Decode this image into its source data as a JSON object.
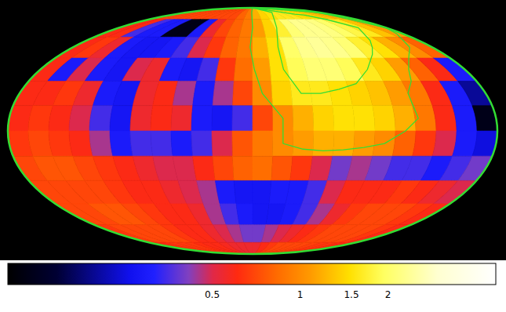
{
  "chart_data": {
    "type": "heatmap",
    "log": true,
    "cells": [
      [
        0.7,
        0.7,
        0.7,
        0.7,
        0.7,
        0.7,
        0.7,
        0.7,
        0.7,
        0.7,
        0.8,
        0.9,
        1.2,
        1.4,
        1.5,
        1.6,
        1.6,
        1.6,
        1.5,
        1.5,
        1.4,
        1.3,
        1.2,
        1.1
      ],
      [
        0.6,
        0.6,
        0.35,
        0.3,
        0.3,
        0.12,
        0.12,
        0.3,
        0.55,
        0.7,
        0.8,
        0.9,
        1.1,
        1.4,
        1.7,
        2.1,
        2.3,
        2.3,
        2.2,
        2.0,
        1.8,
        1.6,
        1.3,
        1.1
      ],
      [
        0.6,
        0.65,
        0.55,
        0.3,
        0.28,
        0.28,
        0.3,
        0.35,
        0.5,
        0.65,
        0.8,
        0.9,
        1.2,
        1.5,
        2.0,
        2.3,
        2.4,
        2.3,
        2.1,
        1.7,
        1.5,
        1.2,
        1.0,
        0.8
      ],
      [
        0.6,
        0.3,
        0.5,
        0.3,
        0.28,
        0.5,
        0.55,
        0.3,
        0.28,
        0.35,
        0.65,
        0.85,
        1.1,
        1.5,
        1.9,
        2.1,
        2.1,
        1.9,
        1.6,
        1.4,
        1.1,
        0.8,
        0.6,
        0.3
      ],
      [
        0.6,
        0.6,
        0.65,
        0.55,
        0.3,
        0.28,
        0.55,
        0.6,
        0.45,
        0.3,
        0.45,
        0.7,
        1.0,
        1.4,
        1.6,
        1.6,
        1.5,
        1.4,
        1.3,
        1.1,
        0.9,
        0.6,
        0.3,
        0.2
      ],
      [
        0.6,
        0.65,
        0.6,
        0.5,
        0.35,
        0.28,
        0.55,
        0.6,
        0.55,
        0.3,
        0.28,
        0.35,
        0.7,
        1.0,
        1.2,
        1.4,
        1.5,
        1.5,
        1.4,
        1.2,
        0.9,
        0.6,
        0.3,
        0.12
      ],
      [
        0.65,
        0.7,
        0.65,
        0.6,
        0.45,
        0.3,
        0.35,
        0.35,
        0.3,
        0.35,
        0.5,
        0.75,
        0.9,
        1.0,
        1.1,
        1.2,
        1.2,
        1.1,
        1.0,
        0.8,
        0.65,
        0.5,
        0.3,
        0.25
      ],
      [
        0.7,
        0.75,
        0.75,
        0.7,
        0.65,
        0.6,
        0.55,
        0.5,
        0.5,
        0.6,
        0.7,
        0.8,
        0.85,
        0.75,
        0.65,
        0.5,
        0.4,
        0.45,
        0.4,
        0.35,
        0.35,
        0.3,
        0.35,
        0.4
      ],
      [
        0.7,
        0.7,
        0.7,
        0.7,
        0.65,
        0.6,
        0.6,
        0.55,
        0.5,
        0.45,
        0.3,
        0.28,
        0.28,
        0.3,
        0.3,
        0.35,
        0.5,
        0.6,
        0.6,
        0.6,
        0.65,
        0.6,
        0.55,
        0.5
      ],
      [
        0.7,
        0.7,
        0.75,
        0.75,
        0.7,
        0.65,
        0.6,
        0.6,
        0.55,
        0.45,
        0.35,
        0.3,
        0.28,
        0.28,
        0.3,
        0.35,
        0.45,
        0.55,
        0.65,
        0.7,
        0.7,
        0.7,
        0.65,
        0.6
      ],
      [
        0.65,
        0.7,
        0.7,
        0.7,
        0.7,
        0.65,
        0.6,
        0.6,
        0.55,
        0.5,
        0.45,
        0.4,
        0.4,
        0.45,
        0.5,
        0.55,
        0.6,
        0.65,
        0.7,
        0.7,
        0.7,
        0.7,
        0.65,
        0.6
      ],
      [
        0.6,
        0.62,
        0.65,
        0.65,
        0.65,
        0.62,
        0.6,
        0.6,
        0.58,
        0.55,
        0.55,
        0.55,
        0.55,
        0.6,
        0.65,
        0.7,
        0.7,
        0.7,
        0.7,
        0.68,
        0.65,
        0.65,
        0.62,
        0.6
      ]
    ],
    "contour_levels": [
      1,
      1.6
    ],
    "colorbar": {
      "range": [
        0.1,
        4.7
      ],
      "ticks": [
        0.5,
        1,
        1.5,
        2
      ]
    }
  }
}
